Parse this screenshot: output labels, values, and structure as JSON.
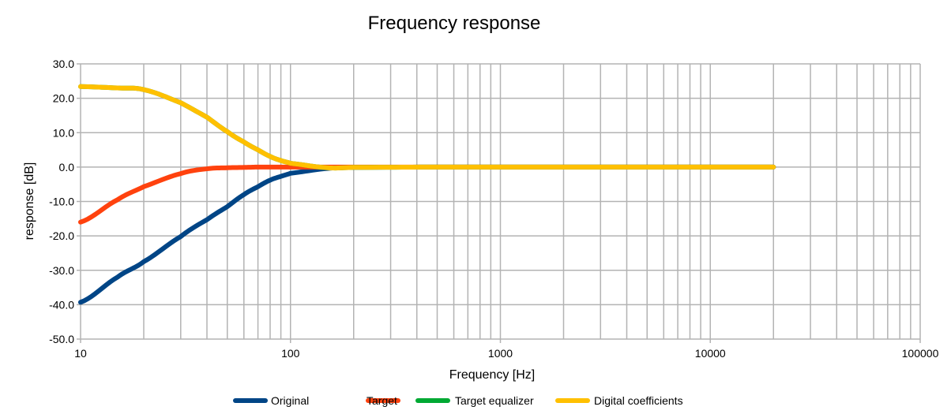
{
  "chart_data": {
    "type": "line",
    "title": "Frequency response",
    "xlabel": "Frequency [Hz]",
    "ylabel": "response [dB]",
    "xscale": "log",
    "xlim": [
      10,
      100000
    ],
    "ylim": [
      -50,
      30
    ],
    "grid": true,
    "legend_position": "bottom",
    "x_ticks": [
      "10",
      "100",
      "1000",
      "10000",
      "100000"
    ],
    "y_ticks": [
      "30.0",
      "20.0",
      "10.0",
      "0.0",
      "-10.0",
      "-20.0",
      "-30.0",
      "-40.0",
      "-50.0"
    ],
    "x": [
      10,
      15,
      20,
      30,
      40,
      50,
      60,
      70,
      80,
      90,
      100,
      150,
      200,
      500,
      1000,
      5000,
      20000
    ],
    "series": [
      {
        "name": "Original",
        "color": "#004586",
        "values": [
          -39.3,
          -32,
          -27.5,
          -20.2,
          -15.3,
          -11.5,
          -8,
          -5.7,
          -3.8,
          -2.7,
          -1.8,
          -0.4,
          -0.1,
          0,
          0,
          0,
          0
        ]
      },
      {
        "name": "Target",
        "color": "#ff420e",
        "values": [
          -16,
          -9.5,
          -5.7,
          -1.9,
          -0.5,
          -0.2,
          -0.1,
          0,
          0,
          0,
          0,
          0,
          0,
          0,
          0,
          0,
          0
        ]
      },
      {
        "name": "Target equalizer",
        "color": "#00a933",
        "values": [
          23.4,
          23,
          22.5,
          18.7,
          14.5,
          10.3,
          7.3,
          5,
          3.1,
          1.9,
          1.1,
          -0.2,
          -0.1,
          0,
          0,
          0,
          0
        ]
      },
      {
        "name": "Digital coefficients",
        "color": "#ffc000",
        "values": [
          23.4,
          23,
          22.5,
          18.7,
          14.5,
          10.3,
          7.3,
          5,
          3.1,
          1.9,
          1.1,
          -0.2,
          -0.1,
          0,
          0,
          0,
          0
        ]
      }
    ]
  }
}
